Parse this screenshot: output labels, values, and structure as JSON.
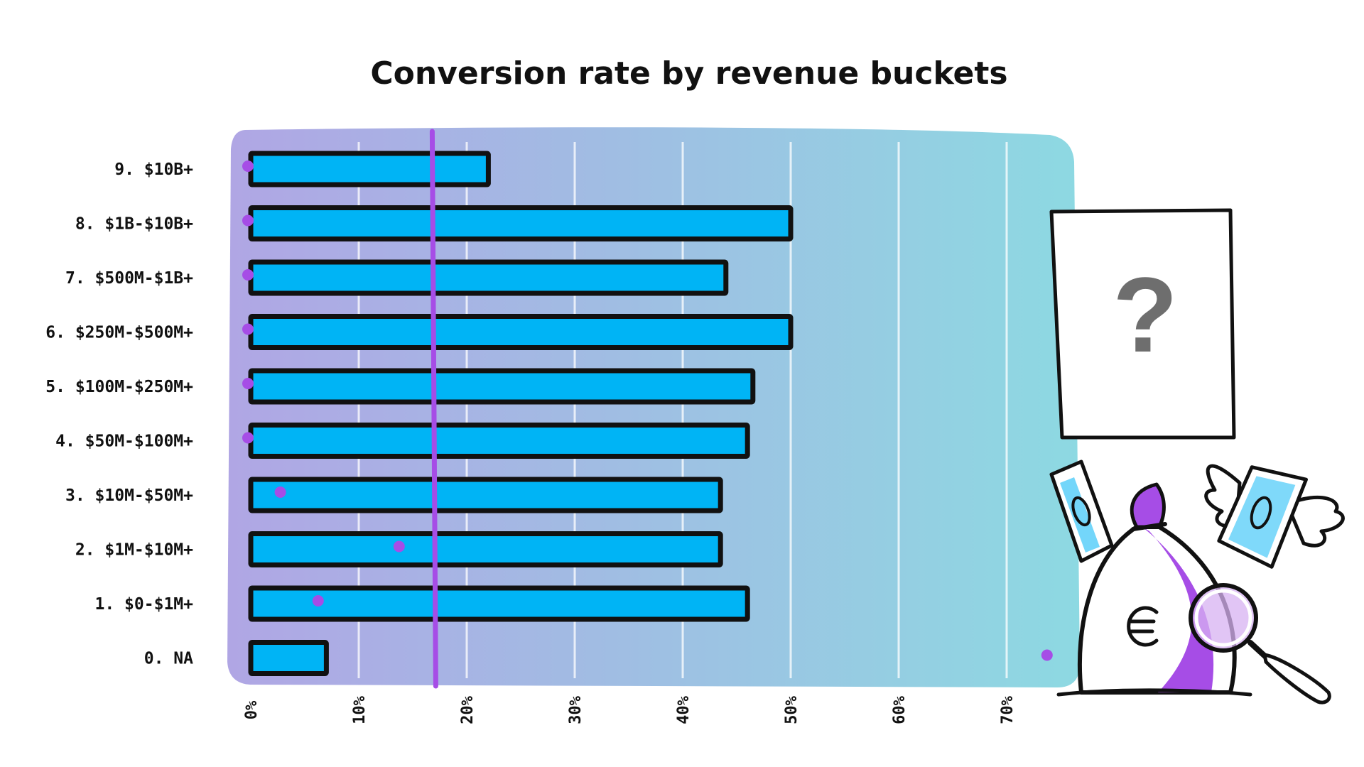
{
  "chart_data": {
    "type": "bar",
    "orientation": "horizontal",
    "title": "Conversion rate by revenue buckets",
    "categories": [
      "9. $10B+",
      "8. $1B-$10B+",
      "7. $500M-$1B+",
      "6. $250M-$500M+",
      "5. $100M-$250M+",
      "4. $50M-$100M+",
      "3. $10M-$50M+",
      "2. $1M-$10M+",
      "1. $0-$1M+",
      "0. NA"
    ],
    "values": [
      22,
      50,
      44,
      50,
      46.5,
      46,
      43.5,
      43.5,
      46,
      7
    ],
    "markers": [
      0,
      0,
      0,
      0,
      0,
      0,
      3,
      14,
      6.5,
      74
    ],
    "reference_line": 17,
    "xlim": [
      0,
      78
    ],
    "xticks": [
      0,
      10,
      20,
      30,
      40,
      50,
      60,
      70
    ],
    "tick_labels": [
      "0%",
      "10%",
      "20%",
      "30%",
      "40%",
      "50%",
      "60%",
      "70%"
    ],
    "grid": true,
    "colors": {
      "bar": "#00b4f5",
      "bar_outline": "#111111",
      "marker": "#a64de6",
      "reference_line": "#a64de6",
      "panel_start": "#b0a6e4",
      "panel_end": "#8dd9e2"
    }
  },
  "illustration": {
    "placeholder_symbol": "?",
    "icons": [
      "question-card-icon",
      "money-bag-icon",
      "euro-icon",
      "magnifier-icon",
      "banknote-icon",
      "winged-banknote-icon"
    ]
  }
}
